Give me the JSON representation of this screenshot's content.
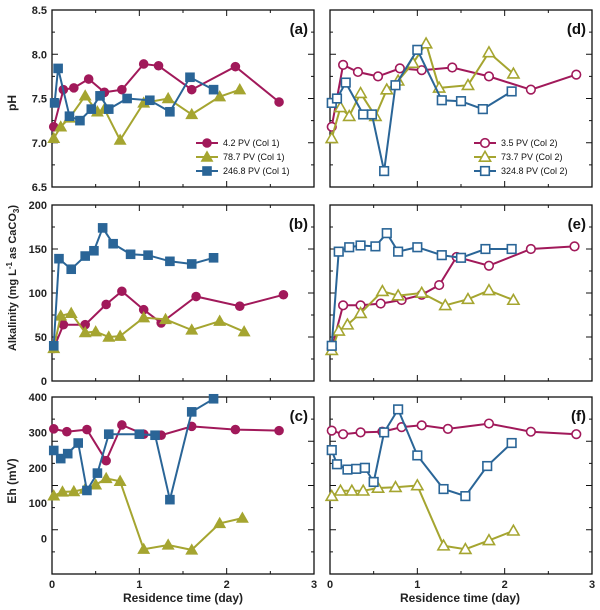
{
  "colors": {
    "magenta": "#a1195a",
    "olive": "#a5a530",
    "blue": "#2a6597"
  },
  "chart_data": [
    {
      "id": "a",
      "type": "line",
      "panel_label": "(a)",
      "ylabel": "pH",
      "ylim": [
        6.5,
        8.5
      ],
      "yticks": [
        "6.5",
        "7.0",
        "7.5",
        "8.0",
        "8.5"
      ],
      "xlim": [
        0,
        3
      ],
      "legend": "bottom-right",
      "series": [
        {
          "name": "4.2 PV (Col 1)",
          "color": "#a1195a",
          "marker": "circle",
          "filled": true,
          "x": [
            0.02,
            0.13,
            0.25,
            0.42,
            0.6,
            0.8,
            1.05,
            1.22,
            1.6,
            2.1,
            2.6
          ],
          "y": [
            7.18,
            7.6,
            7.62,
            7.72,
            7.57,
            7.6,
            7.89,
            7.87,
            7.6,
            7.86,
            7.46
          ]
        },
        {
          "name": "78.7 PV (Col 1)",
          "color": "#a5a530",
          "marker": "triangle",
          "filled": true,
          "x": [
            0.02,
            0.1,
            0.2,
            0.38,
            0.52,
            0.6,
            0.78,
            1.05,
            1.33,
            1.6,
            1.92,
            2.15
          ],
          "y": [
            7.05,
            7.18,
            7.28,
            7.53,
            7.35,
            7.38,
            7.03,
            7.45,
            7.5,
            7.32,
            7.52,
            7.6
          ]
        },
        {
          "name": "246.8 PV (Col 1)",
          "color": "#2a6597",
          "marker": "square",
          "filled": true,
          "x": [
            0.03,
            0.07,
            0.2,
            0.32,
            0.45,
            0.55,
            0.65,
            0.86,
            1.12,
            1.35,
            1.58,
            1.85
          ],
          "y": [
            7.45,
            7.84,
            7.3,
            7.25,
            7.38,
            7.53,
            7.38,
            7.5,
            7.48,
            7.35,
            7.74,
            7.6
          ]
        }
      ]
    },
    {
      "id": "b",
      "type": "line",
      "panel_label": "(b)",
      "ylabel": "Alkalinity (mg L-1 as CaCO3)",
      "ylim": [
        0,
        200
      ],
      "yticks": [
        "0",
        "50",
        "100",
        "150",
        "200"
      ],
      "xlim": [
        0,
        3
      ],
      "series": [
        {
          "name": "4.2 PV (Col 1)",
          "color": "#a1195a",
          "marker": "circle",
          "filled": true,
          "x": [
            0.02,
            0.13,
            0.38,
            0.62,
            0.8,
            1.05,
            1.25,
            1.65,
            2.15,
            2.65
          ],
          "y": [
            37,
            64,
            64,
            87,
            102,
            81,
            66,
            96,
            85,
            98
          ]
        },
        {
          "name": "78.7 PV (Col 1)",
          "color": "#a5a530",
          "marker": "triangle",
          "filled": true,
          "x": [
            0.02,
            0.1,
            0.22,
            0.38,
            0.5,
            0.65,
            0.78,
            1.05,
            1.3,
            1.6,
            1.92,
            2.2
          ],
          "y": [
            37,
            74,
            77,
            55,
            56,
            50,
            51,
            72,
            70,
            58,
            68,
            56
          ]
        },
        {
          "name": "246.8 PV (Col 1)",
          "color": "#2a6597",
          "marker": "square",
          "filled": true,
          "x": [
            0.02,
            0.08,
            0.22,
            0.38,
            0.48,
            0.58,
            0.7,
            0.9,
            1.1,
            1.35,
            1.6,
            1.85
          ],
          "y": [
            40,
            139,
            127,
            142,
            148,
            174,
            156,
            144,
            143,
            136,
            133,
            140
          ]
        }
      ]
    },
    {
      "id": "c",
      "type": "line",
      "panel_label": "(c)",
      "ylabel": "Eh (mV)",
      "ylim": [
        -100,
        400
      ],
      "yticks": [
        "0",
        "100",
        "200",
        "300",
        "400"
      ],
      "xlim": [
        0,
        3
      ],
      "xticks": [
        "0",
        "1",
        "2",
        "3"
      ],
      "xlabel": "Residence time (day)",
      "series": [
        {
          "name": "4.2 PV (Col 1)",
          "color": "#a1195a",
          "marker": "circle",
          "filled": true,
          "x": [
            0.02,
            0.17,
            0.4,
            0.62,
            0.8,
            1.05,
            1.25,
            1.6,
            2.1,
            2.6
          ],
          "y": [
            310,
            302,
            308,
            220,
            321,
            295,
            292,
            317,
            308,
            305
          ]
        },
        {
          "name": "78.7 PV (Col 1)",
          "color": "#a5a530",
          "marker": "triangle",
          "filled": true,
          "x": [
            0.02,
            0.12,
            0.25,
            0.38,
            0.5,
            0.62,
            0.78,
            1.05,
            1.33,
            1.6,
            1.92,
            2.18
          ],
          "y": [
            121,
            132,
            133,
            140,
            152,
            170,
            162,
            -30,
            -18,
            -32,
            43,
            58
          ]
        },
        {
          "name": "246.8 PV (Col 1)",
          "color": "#2a6597",
          "marker": "square",
          "filled": true,
          "x": [
            0.02,
            0.1,
            0.18,
            0.3,
            0.4,
            0.52,
            0.65,
            1.0,
            1.18,
            1.35,
            1.6,
            1.85
          ],
          "y": [
            249,
            226,
            240,
            270,
            136,
            185,
            295,
            295,
            292,
            110,
            358,
            395
          ]
        }
      ]
    },
    {
      "id": "d",
      "type": "line",
      "panel_label": "(d)",
      "ylim": [
        6.5,
        8.5
      ],
      "xlim": [
        0,
        3
      ],
      "legend": "bottom-right",
      "series": [
        {
          "name": "3.5 PV (Col 2)",
          "color": "#a1195a",
          "marker": "circle",
          "filled": false,
          "x": [
            0.02,
            0.15,
            0.32,
            0.55,
            0.8,
            1.05,
            1.4,
            1.82,
            2.3,
            2.82
          ],
          "y": [
            7.18,
            7.88,
            7.8,
            7.75,
            7.84,
            7.82,
            7.85,
            7.75,
            7.6,
            7.77
          ]
        },
        {
          "name": "73.7 PV (Col 2)",
          "color": "#a5a530",
          "marker": "triangle",
          "filled": false,
          "x": [
            0.02,
            0.12,
            0.22,
            0.35,
            0.52,
            0.65,
            0.78,
            0.95,
            1.1,
            1.25,
            1.58,
            1.82,
            2.1
          ],
          "y": [
            7.05,
            7.4,
            7.3,
            7.56,
            7.3,
            7.6,
            7.7,
            7.9,
            8.12,
            7.62,
            7.65,
            8.02,
            7.78
          ]
        },
        {
          "name": "324.8 PV (Col 2)",
          "color": "#2a6597",
          "marker": "square",
          "filled": false,
          "x": [
            0.02,
            0.08,
            0.18,
            0.38,
            0.48,
            0.62,
            0.75,
            1.0,
            1.28,
            1.5,
            1.75,
            2.08
          ],
          "y": [
            7.45,
            7.5,
            7.68,
            7.32,
            7.32,
            6.68,
            7.65,
            8.05,
            7.48,
            7.47,
            7.38,
            7.58
          ]
        }
      ]
    },
    {
      "id": "e",
      "type": "line",
      "panel_label": "(e)",
      "ylim": [
        0,
        200
      ],
      "xlim": [
        0,
        3
      ],
      "series": [
        {
          "name": "3.5 PV (Col 2)",
          "color": "#a1195a",
          "marker": "circle",
          "filled": false,
          "x": [
            0.02,
            0.15,
            0.35,
            0.58,
            0.82,
            1.05,
            1.25,
            1.45,
            1.82,
            2.3,
            2.8
          ],
          "y": [
            37,
            86,
            86,
            88,
            92,
            98,
            109,
            141,
            131,
            150,
            153
          ]
        },
        {
          "name": "73.7 PV (Col 2)",
          "color": "#a5a530",
          "marker": "triangle",
          "filled": false,
          "x": [
            0.02,
            0.1,
            0.2,
            0.35,
            0.6,
            0.78,
            1.05,
            1.32,
            1.58,
            1.82,
            2.1
          ],
          "y": [
            35,
            57,
            64,
            77,
            102,
            97,
            100,
            86,
            93,
            103,
            92
          ]
        },
        {
          "name": "324.8 PV (Col 2)",
          "color": "#2a6597",
          "marker": "square",
          "filled": false,
          "x": [
            0.02,
            0.1,
            0.22,
            0.35,
            0.52,
            0.65,
            0.78,
            1.0,
            1.28,
            1.5,
            1.78,
            2.08
          ],
          "y": [
            40,
            147,
            152,
            154,
            153,
            168,
            147,
            152,
            143,
            140,
            150,
            150
          ]
        }
      ]
    },
    {
      "id": "f",
      "type": "line",
      "panel_label": "(f)",
      "ylim": [
        -100,
        400
      ],
      "xlim": [
        0,
        3
      ],
      "xticks": [
        "0",
        "1",
        "2",
        "3"
      ],
      "xlabel": "Residence time (day)",
      "series": [
        {
          "name": "3.5 PV (Col 2)",
          "color": "#a1195a",
          "marker": "circle",
          "filled": false,
          "x": [
            0.02,
            0.15,
            0.35,
            0.6,
            0.82,
            1.05,
            1.35,
            1.82,
            2.3,
            2.82
          ],
          "y": [
            305,
            295,
            300,
            302,
            315,
            320,
            310,
            325,
            302,
            295
          ]
        },
        {
          "name": "73.7 PV (Col 2)",
          "color": "#a5a530",
          "marker": "triangle",
          "filled": false,
          "x": [
            0.02,
            0.12,
            0.25,
            0.38,
            0.55,
            0.75,
            1.0,
            1.3,
            1.55,
            1.82,
            2.1
          ],
          "y": [
            120,
            135,
            135,
            135,
            143,
            145,
            150,
            -20,
            -30,
            -5,
            22
          ]
        },
        {
          "name": "324.8 PV (Col 2)",
          "color": "#2a6597",
          "marker": "square",
          "filled": false,
          "x": [
            0.02,
            0.08,
            0.2,
            0.3,
            0.4,
            0.5,
            0.62,
            0.78,
            1.0,
            1.3,
            1.55,
            1.8,
            2.08
          ],
          "y": [
            250,
            210,
            195,
            197,
            200,
            160,
            300,
            365,
            235,
            140,
            120,
            205,
            270
          ]
        }
      ]
    }
  ],
  "ylabel_alk_parts": {
    "main": "Alkalinity (mg L",
    "sup": "-1",
    "mid": " as CaCO",
    "sub": "3",
    "end": ")"
  }
}
